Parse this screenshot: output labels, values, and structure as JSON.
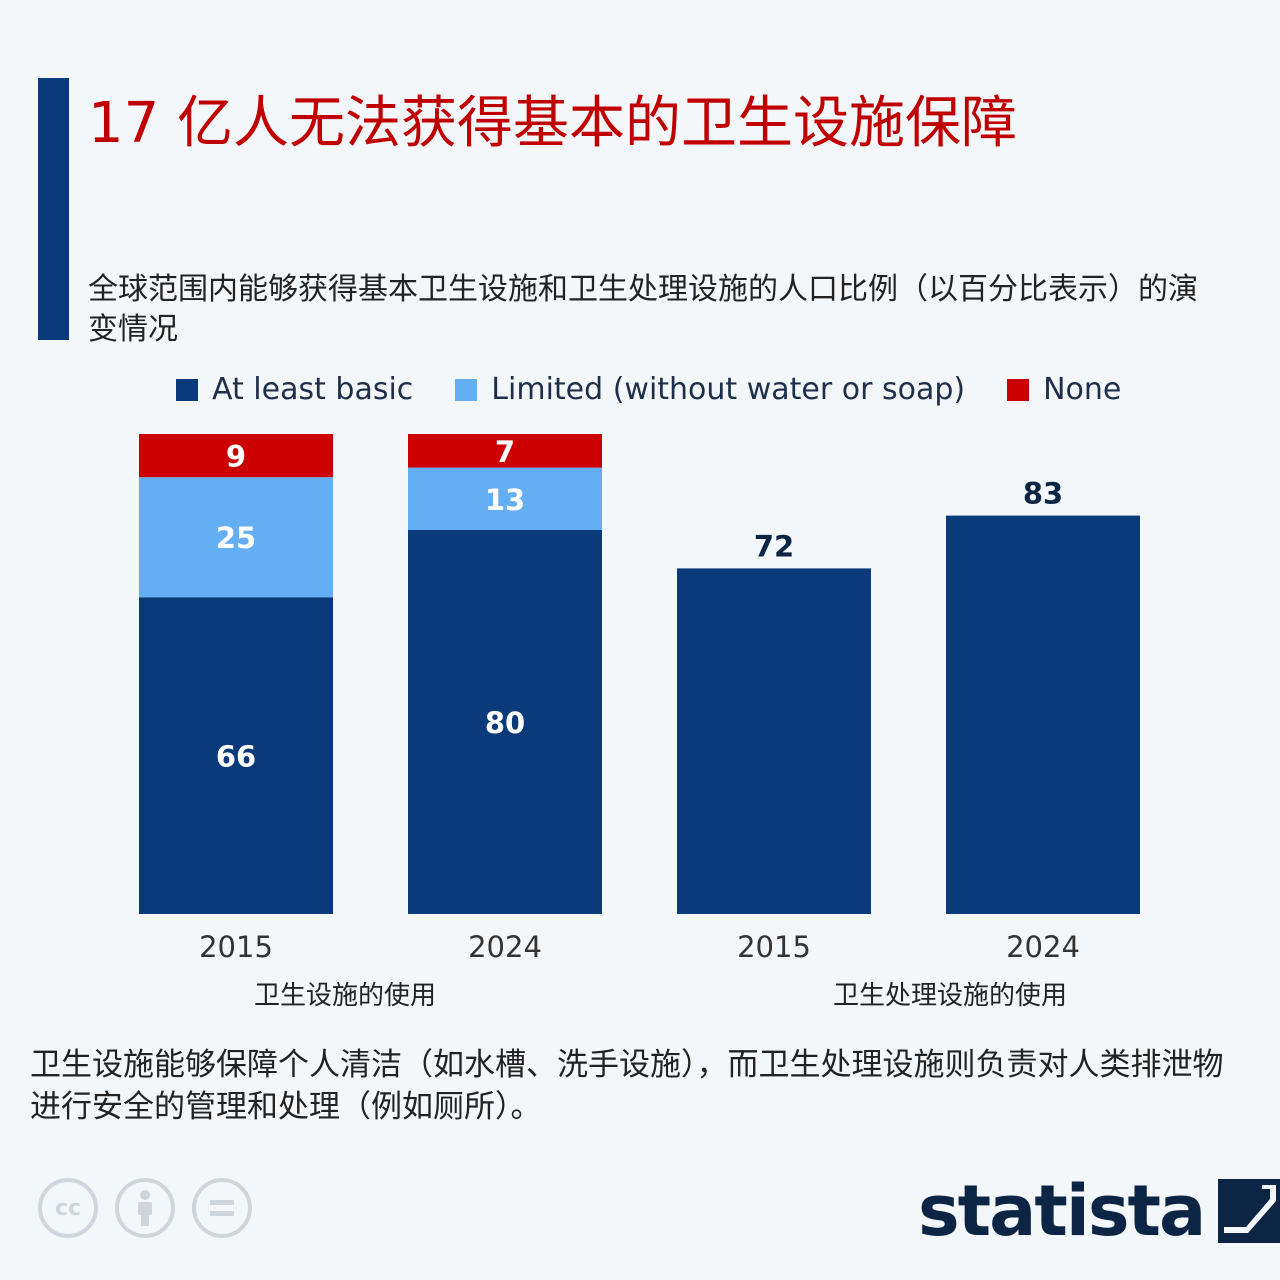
{
  "title": "17 亿人无法获得基本的卫生设施保障",
  "subtitle": "全球范围内能够获得基本卫生设施和卫生处理设施的人口比例（以百分比表示）的演变情况",
  "footnote": "卫生设施能够保障个人清洁（如水槽、洗手设施），而卫生处理设施则负责对人类排泄物进行安全的管理和处理（例如厕所）。",
  "brand": "statista",
  "colors": {
    "at_least_basic": "#0b3a7b",
    "limited": "#64aef4",
    "none": "#cc0000",
    "title": "#c00000"
  },
  "icons": [
    "creative-commons-icon",
    "attribution-icon",
    "no-derivatives-icon"
  ],
  "chart_data": {
    "type": "bar",
    "legend": [
      "At least basic",
      "Limited (without water or soap)",
      "None"
    ],
    "legend_position": "top",
    "grid": false,
    "ylim": [
      0,
      100
    ],
    "categories": [
      "2015",
      "2024",
      "2015",
      "2024"
    ],
    "groups": [
      {
        "label": "卫生设施的使用",
        "categories": [
          "2015",
          "2024"
        ]
      },
      {
        "label": "卫生处理设施的使用",
        "categories": [
          "2015",
          "2024"
        ]
      }
    ],
    "series": [
      {
        "name": "At least basic",
        "values": [
          66,
          80,
          72,
          83
        ]
      },
      {
        "name": "Limited (without water or soap)",
        "values": [
          25,
          13,
          null,
          null
        ]
      },
      {
        "name": "None",
        "values": [
          9,
          7,
          null,
          null
        ]
      }
    ]
  }
}
